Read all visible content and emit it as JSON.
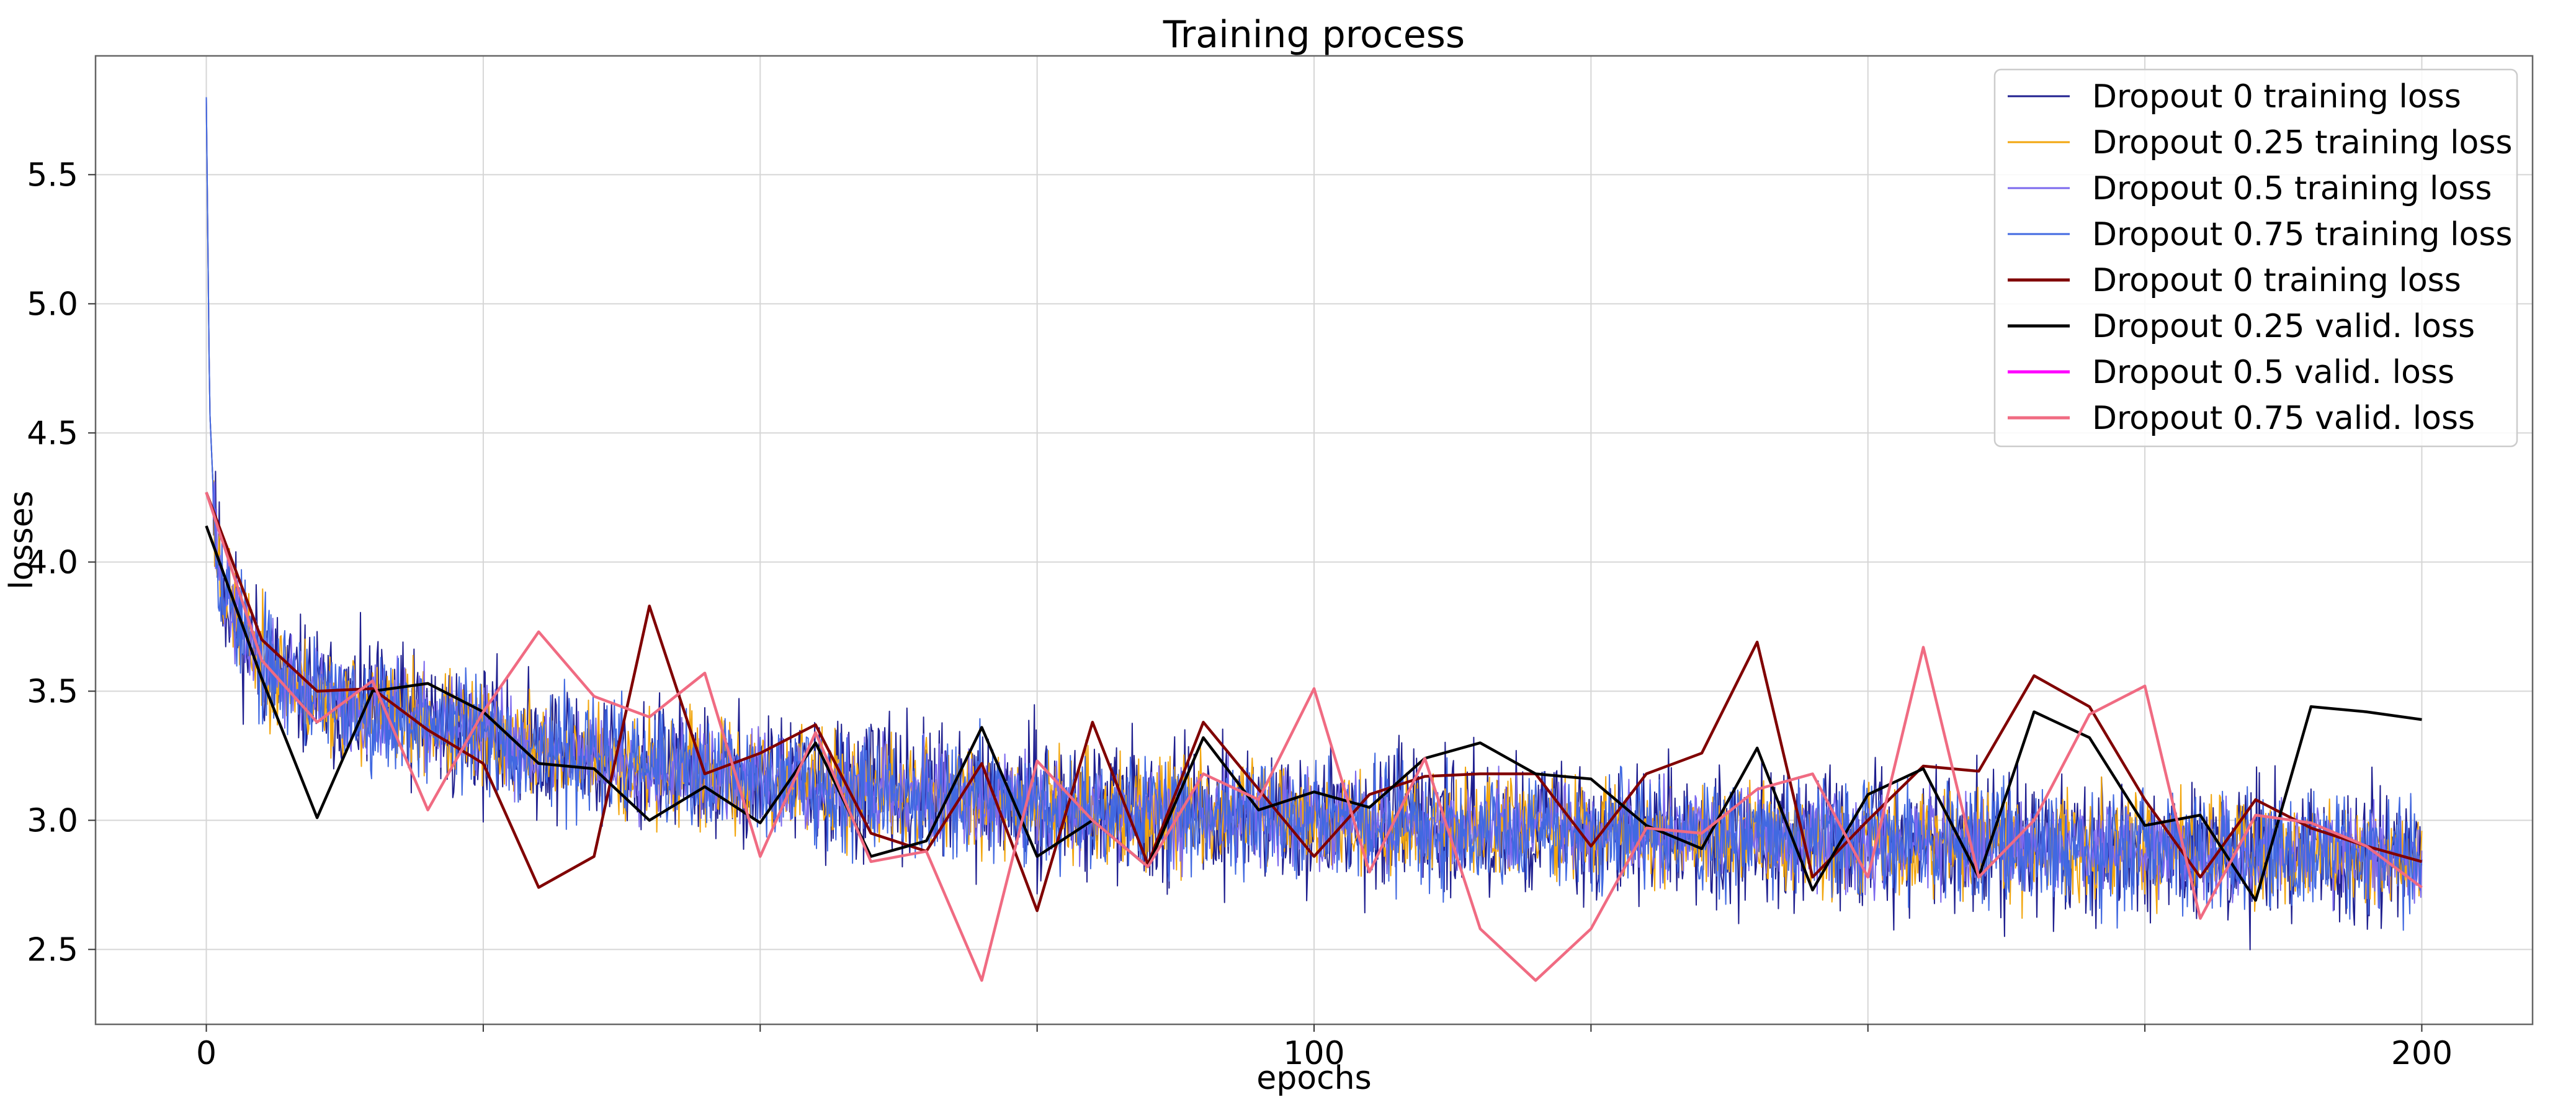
{
  "chart_data": {
    "type": "line",
    "title": "Training process",
    "xlabel": "epochs",
    "ylabel": "losses",
    "xlim": [
      -10,
      210
    ],
    "ylim": [
      2.21,
      5.96
    ],
    "x_ticks": [
      0,
      100,
      200
    ],
    "x_minor_ticks": [
      25,
      50,
      75,
      125,
      150,
      175
    ],
    "y_ticks": [
      2.5,
      3.0,
      3.5,
      4.0,
      4.5,
      5.0,
      5.5
    ],
    "x_tick_labels": [
      "0",
      "100",
      "200"
    ],
    "y_tick_labels": [
      "2.5",
      "3.0",
      "3.5",
      "4.0",
      "4.5",
      "5.0",
      "5.5"
    ],
    "grid": true,
    "legend_position": "top-right",
    "training_trend": {
      "x": [
        0,
        0.3,
        0.8,
        1.5,
        3,
        5,
        8,
        12,
        20,
        30,
        45,
        60,
        80,
        100,
        120,
        150,
        175,
        200
      ],
      "y": [
        5.8,
        4.6,
        4.1,
        3.9,
        3.75,
        3.62,
        3.52,
        3.45,
        3.38,
        3.28,
        3.18,
        3.12,
        3.05,
        3.0,
        2.97,
        2.92,
        2.89,
        2.86
      ]
    },
    "series": [
      {
        "name": "Dropout 0 training loss",
        "color": "#1f1f8f",
        "kind": "training",
        "noise": 0.13,
        "seed": 11
      },
      {
        "name": "Dropout 0.25 training loss",
        "color": "#f2a60d",
        "kind": "training",
        "noise": 0.1,
        "seed": 23
      },
      {
        "name": "Dropout 0.5 training loss",
        "color": "#7b68ee",
        "kind": "training",
        "noise": 0.09,
        "seed": 37
      },
      {
        "name": "Dropout 0.75 training loss",
        "color": "#4169e1",
        "kind": "training",
        "noise": 0.11,
        "seed": 53
      },
      {
        "name": "Dropout 0 training loss",
        "color": "#800000",
        "kind": "valid",
        "x": [
          0,
          5,
          10,
          15,
          20,
          25,
          30,
          35,
          40,
          45,
          50,
          55,
          60,
          65,
          70,
          75,
          80,
          85,
          90,
          95,
          100,
          105,
          110,
          115,
          120,
          125,
          130,
          135,
          140,
          145,
          150,
          155,
          160,
          165,
          170,
          175,
          180,
          185,
          190,
          195,
          200
        ],
        "y": [
          4.27,
          3.7,
          3.5,
          3.51,
          3.35,
          3.22,
          2.74,
          2.86,
          3.83,
          3.18,
          3.26,
          3.37,
          2.95,
          2.88,
          3.22,
          2.65,
          3.38,
          2.83,
          3.38,
          3.12,
          2.86,
          3.1,
          3.17,
          3.18,
          3.18,
          2.9,
          3.18,
          3.26,
          3.69,
          2.78,
          3.0,
          3.21,
          3.19,
          3.56,
          3.44,
          3.08,
          2.78,
          3.08,
          2.97,
          2.9,
          2.84
        ]
      },
      {
        "name": "Dropout 0.25 valid. loss",
        "color": "#000000",
        "kind": "valid",
        "x": [
          0,
          5,
          10,
          15,
          20,
          25,
          30,
          35,
          40,
          45,
          50,
          55,
          60,
          65,
          70,
          75,
          80,
          85,
          90,
          95,
          100,
          105,
          110,
          115,
          120,
          125,
          130,
          135,
          140,
          145,
          150,
          155,
          160,
          165,
          170,
          175,
          180,
          185,
          190,
          195,
          200
        ],
        "y": [
          4.14,
          3.55,
          3.01,
          3.5,
          3.53,
          3.42,
          3.22,
          3.2,
          3.0,
          3.13,
          2.99,
          3.3,
          2.86,
          2.92,
          3.36,
          2.86,
          3.0,
          2.82,
          3.32,
          3.04,
          3.11,
          3.05,
          3.24,
          3.3,
          3.18,
          3.16,
          2.98,
          2.89,
          3.28,
          2.73,
          3.1,
          3.2,
          2.78,
          3.42,
          3.32,
          2.98,
          3.02,
          2.69,
          3.44,
          3.42,
          3.39
        ]
      },
      {
        "name": "Dropout 0.5 valid. loss",
        "color": "#ff00ff",
        "kind": "valid",
        "x": [],
        "y": []
      },
      {
        "name": "Dropout 0.75 valid. loss",
        "color": "#f06b82",
        "kind": "valid",
        "x": [
          0,
          5,
          10,
          15,
          20,
          25,
          30,
          35,
          40,
          45,
          50,
          55,
          60,
          65,
          70,
          75,
          80,
          85,
          90,
          95,
          100,
          105,
          110,
          115,
          120,
          125,
          130,
          135,
          140,
          145,
          150,
          155,
          160,
          165,
          170,
          175,
          180,
          185,
          190,
          195,
          200
        ],
        "y": [
          4.27,
          3.62,
          3.38,
          3.54,
          3.04,
          3.42,
          3.73,
          3.48,
          3.4,
          3.57,
          2.86,
          3.34,
          2.84,
          2.88,
          2.38,
          3.23,
          3.0,
          2.82,
          3.18,
          3.08,
          3.51,
          2.8,
          3.24,
          2.58,
          2.38,
          2.58,
          2.97,
          2.95,
          3.12,
          3.18,
          2.78,
          3.67,
          2.78,
          3.0,
          3.41,
          3.52,
          2.62,
          3.02,
          2.99,
          2.9,
          2.74
        ]
      }
    ]
  }
}
